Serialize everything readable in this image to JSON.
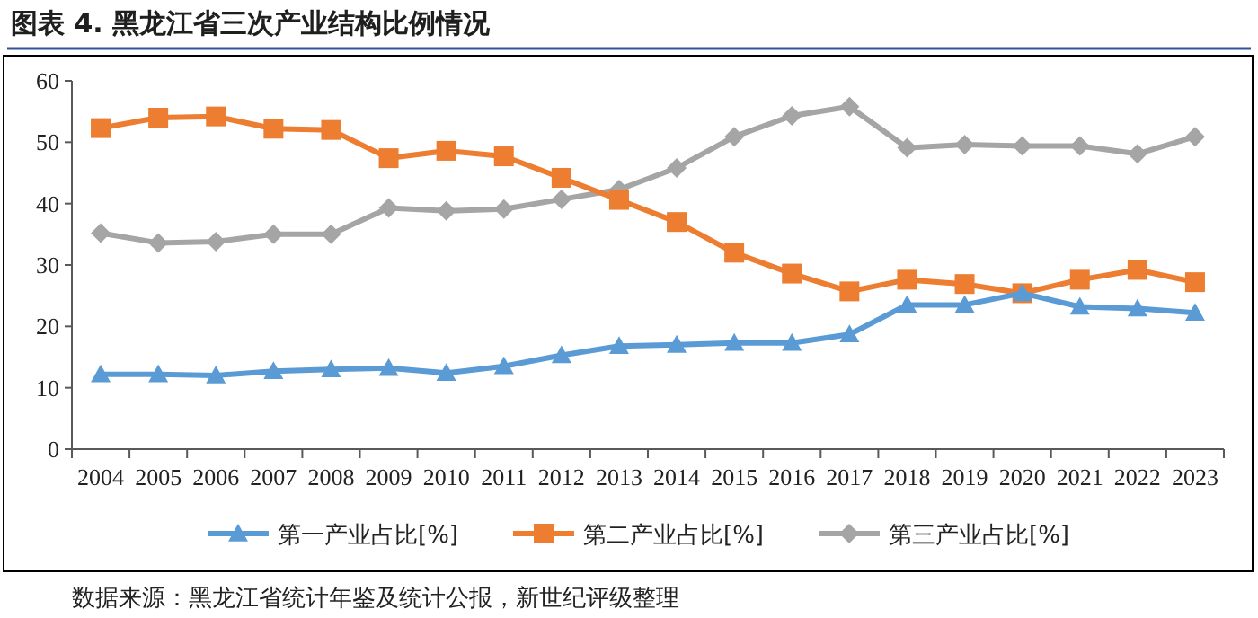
{
  "chart_data": {
    "type": "line",
    "title": "图表 4.  黑龙江省三次产业结构比例情况",
    "categories": [
      "2004",
      "2005",
      "2006",
      "2007",
      "2008",
      "2009",
      "2010",
      "2011",
      "2012",
      "2013",
      "2014",
      "2015",
      "2016",
      "2017",
      "2018",
      "2019",
      "2020",
      "2021",
      "2022",
      "2023"
    ],
    "series": [
      {
        "name": "第一产业占比[%]",
        "color": "#5b9bd5",
        "marker": "triangle",
        "values": [
          12.2,
          12.2,
          12.0,
          12.7,
          13.0,
          13.2,
          12.4,
          13.5,
          15.3,
          16.8,
          17.0,
          17.3,
          17.3,
          18.7,
          23.5,
          23.5,
          25.4,
          23.2,
          22.9,
          22.2
        ]
      },
      {
        "name": "第二产业占比[%]",
        "color": "#ed7d31",
        "marker": "square",
        "values": [
          52.3,
          54.0,
          54.2,
          52.2,
          52.0,
          47.4,
          48.6,
          47.7,
          44.2,
          40.6,
          37.0,
          32.0,
          28.6,
          25.7,
          27.6,
          26.9,
          25.4,
          27.6,
          29.2,
          27.2
        ]
      },
      {
        "name": "第三产业占比[%]",
        "color": "#a5a5a5",
        "marker": "diamond",
        "values": [
          35.2,
          33.6,
          33.8,
          35.0,
          35.0,
          39.3,
          38.8,
          39.1,
          40.7,
          42.3,
          45.8,
          50.9,
          54.3,
          55.8,
          49.1,
          49.6,
          49.4,
          49.4,
          48.1,
          50.9
        ]
      }
    ],
    "ylim": [
      0,
      60
    ],
    "yticks": [
      0,
      10,
      20,
      30,
      40,
      50,
      60
    ],
    "grid": false,
    "legend": "bottom",
    "line_style": "solid",
    "annotations": [
      "数据来源：黑龙江省统计年鉴及统计公报，新世纪评级整理"
    ]
  }
}
